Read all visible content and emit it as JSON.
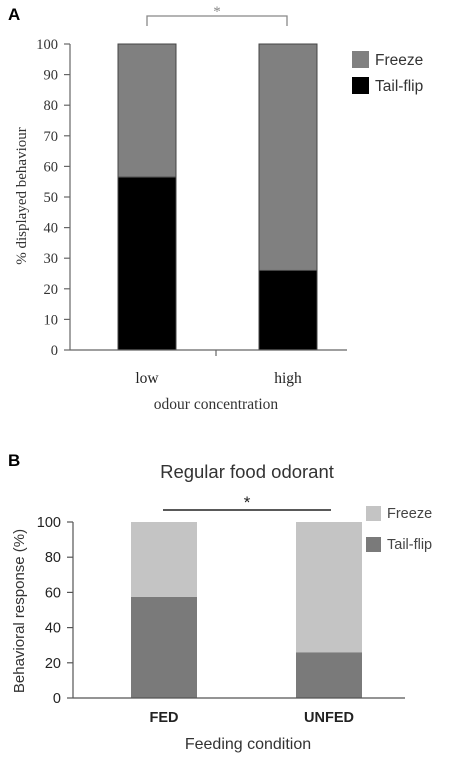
{
  "chart_data": [
    {
      "panel_label": "A",
      "type": "bar",
      "stacked": true,
      "categories": [
        "low",
        "high"
      ],
      "series": [
        {
          "name": "Tail-flip",
          "values": [
            56.5,
            26
          ],
          "color": "#000000"
        },
        {
          "name": "Freeze",
          "values": [
            43.5,
            74
          ],
          "color": "#808080"
        }
      ],
      "xlabel": "odour concentration",
      "ylabel": "% displayed behaviour",
      "ylim": [
        0,
        100
      ],
      "yticks": [
        0,
        10,
        20,
        30,
        40,
        50,
        60,
        70,
        80,
        90,
        100
      ],
      "significance": "*",
      "legend": "top-right",
      "grid": false
    },
    {
      "panel_label": "B",
      "type": "bar",
      "stacked": true,
      "title": "Regular food odorant",
      "categories": [
        "FED",
        "UNFED"
      ],
      "series": [
        {
          "name": "Tail-flip",
          "values": [
            57.5,
            26
          ],
          "color": "#7a7a7a"
        },
        {
          "name": "Freeze",
          "values": [
            42.5,
            74
          ],
          "color": "#c4c4c4"
        }
      ],
      "xlabel": "Feeding condition",
      "ylabel": "Behavioral response (%)",
      "ylim": [
        0,
        100
      ],
      "yticks": [
        0,
        20,
        40,
        60,
        80,
        100
      ],
      "significance": "*",
      "legend": "top-right",
      "grid": false
    }
  ]
}
